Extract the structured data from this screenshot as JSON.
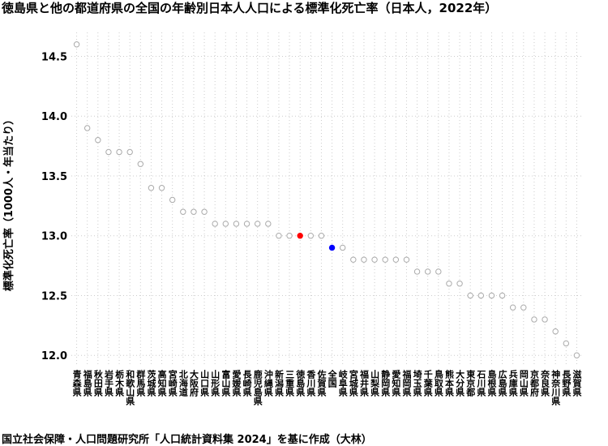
{
  "chart_data": {
    "type": "dot",
    "title": "徳島県と他の都道府県の全国の年齢別日本人人口による標準化死亡率（日本人，2022年）",
    "y_label": "標準化死亡率（1000人・年当たり）",
    "caption": "国立社会保障・人口問題研究所「人口統計資料集 2024」を基に作成（大林）",
    "categories": [
      "青森県",
      "福島県",
      "秋田県",
      "岩手県",
      "栃木県",
      "和歌山県",
      "群馬県",
      "茨城県",
      "高知県",
      "宮崎県",
      "北海道",
      "大阪府",
      "山口県",
      "山形県",
      "富山県",
      "愛媛県",
      "長崎県",
      "鹿児島県",
      "沖縄県",
      "新潟県",
      "三重県",
      "徳島県",
      "香川県",
      "佐賀県",
      "全国",
      "岐阜県",
      "宮城県",
      "福井県",
      "山梨県",
      "静岡県",
      "愛知県",
      "福岡県",
      "埼玉県",
      "千葉県",
      "鳥取県",
      "熊本県",
      "大分県",
      "東京都",
      "石川県",
      "島根県",
      "広島県",
      "兵庫県",
      "岡山県",
      "京都府",
      "奈良県",
      "神奈川県",
      "長野県",
      "滋賀県"
    ],
    "values": [
      14.6,
      13.9,
      13.8,
      13.7,
      13.7,
      13.7,
      13.6,
      13.4,
      13.4,
      13.3,
      13.2,
      13.2,
      13.2,
      13.1,
      13.1,
      13.1,
      13.1,
      13.1,
      13.1,
      13.0,
      13.0,
      13.0,
      13.0,
      13.0,
      12.9,
      12.9,
      12.8,
      12.8,
      12.8,
      12.8,
      12.8,
      12.8,
      12.7,
      12.7,
      12.7,
      12.6,
      12.6,
      12.5,
      12.5,
      12.5,
      12.5,
      12.4,
      12.4,
      12.3,
      12.3,
      12.2,
      12.1,
      12.0
    ],
    "color": "#aaaaaa",
    "fills": [
      "none",
      "none",
      "none",
      "none",
      "none",
      "none",
      "none",
      "none",
      "none",
      "none",
      "none",
      "none",
      "none",
      "none",
      "none",
      "none",
      "none",
      "none",
      "none",
      "none",
      "none",
      "#ff0000",
      "none",
      "none",
      "#0000ff",
      "none",
      "none",
      "none",
      "none",
      "none",
      "none",
      "none",
      "none",
      "none",
      "none",
      "none",
      "none",
      "none",
      "none",
      "none",
      "none",
      "none",
      "none",
      "none",
      "none",
      "none",
      "none",
      "none"
    ],
    "ylim": [
      11.92,
      14.7
    ],
    "yticks": [
      {
        "value": 12,
        "label": "12.0"
      },
      {
        "value": 12.5,
        "label": "12.5"
      },
      {
        "value": 13,
        "label": "13.0"
      },
      {
        "value": 13.5,
        "label": "13.5"
      },
      {
        "value": 14,
        "label": "14.0"
      },
      {
        "value": 14.5,
        "label": "14.5"
      }
    ],
    "grid": true
  }
}
